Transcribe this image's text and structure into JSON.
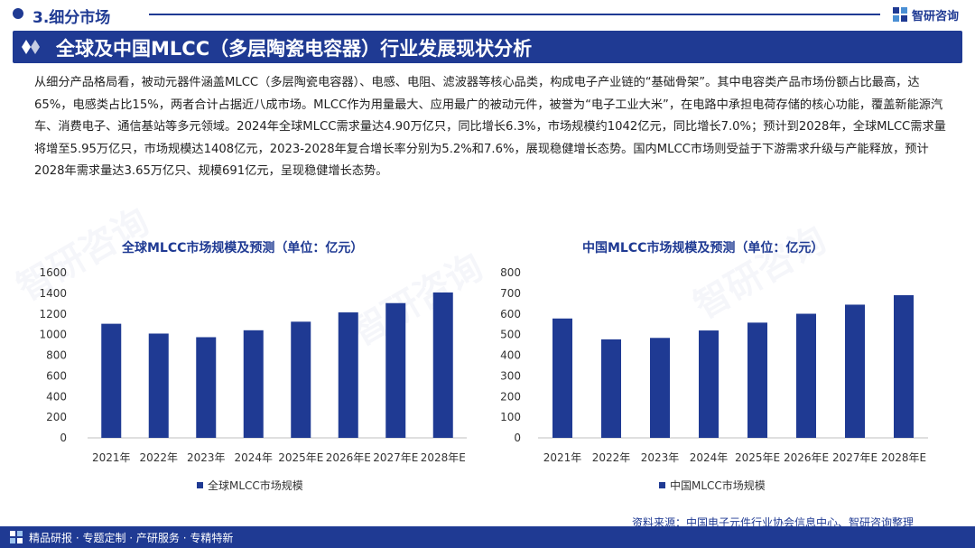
{
  "header": {
    "section_label": "3.细分市场",
    "brand_name": "智研咨询"
  },
  "banner": {
    "title": "全球及中国MLCC（多层陶瓷电容器）行业发展现状分析"
  },
  "body_text": "从细分产品格局看，被动元器件涵盖MLCC（多层陶瓷电容器）、电感、电阻、滤波器等核心品类，构成电子产业链的“基础骨架”。其中电容类产品市场份额占比最高，达65%，电感类占比15%，两者合计占据近八成市场。MLCC作为用量最大、应用最广的被动元件，被誉为“电子工业大米”，在电路中承担电荷存储的核心功能，覆盖新能源汽车、消费电子、通信基站等多元领域。2024年全球MLCC需求量达4.90万亿只，同比增长6.3%，市场规模约1042亿元，同比增长7.0%；预计到2028年，全球MLCC需求量将增至5.95万亿只，市场规模达1408亿元，2023-2028年复合增长率分别为5.2%和7.6%，展现稳健增长态势。国内MLCC市场则受益于下游需求升级与产能释放，预计2028年需求量达3.65万亿只、规模691亿元，呈现稳健增长态势。",
  "chart_data": [
    {
      "type": "bar",
      "title": "全球MLCC市场规模及预测（单位：亿元）",
      "categories": [
        "2021年",
        "2022年",
        "2023年",
        "2024年",
        "2025年E",
        "2026年E",
        "2027年E",
        "2028年E"
      ],
      "series": [
        {
          "name": "全球MLCC市场规模",
          "values": [
            1105,
            1010,
            975,
            1042,
            1125,
            1215,
            1305,
            1408
          ]
        }
      ],
      "ylim": [
        0,
        1600
      ],
      "yticks": [
        0,
        200,
        400,
        600,
        800,
        1000,
        1200,
        1400,
        1600
      ],
      "color": "#1f3a93",
      "grid": false,
      "legend_position": "bottom-center"
    },
    {
      "type": "bar",
      "title": "中国MLCC市场规模及预测（单位：亿元）",
      "categories": [
        "2021年",
        "2022年",
        "2023年",
        "2024年",
        "2025年E",
        "2026年E",
        "2027年E",
        "2028年E"
      ],
      "series": [
        {
          "name": "中国MLCC市场规模",
          "values": [
            578,
            477,
            484,
            520,
            558,
            601,
            645,
            691
          ]
        }
      ],
      "ylim": [
        0,
        800
      ],
      "yticks": [
        0,
        100,
        200,
        300,
        400,
        500,
        600,
        700,
        800
      ],
      "color": "#1f3a93",
      "grid": false,
      "legend_position": "bottom-center"
    }
  ],
  "footer": {
    "tagline": "精品研报 · 专题定制 · 产研服务 · 专精特新",
    "source": "资料来源：中国电子元件行业协会信息中心、智研咨询整理"
  },
  "watermark": "智研咨询"
}
